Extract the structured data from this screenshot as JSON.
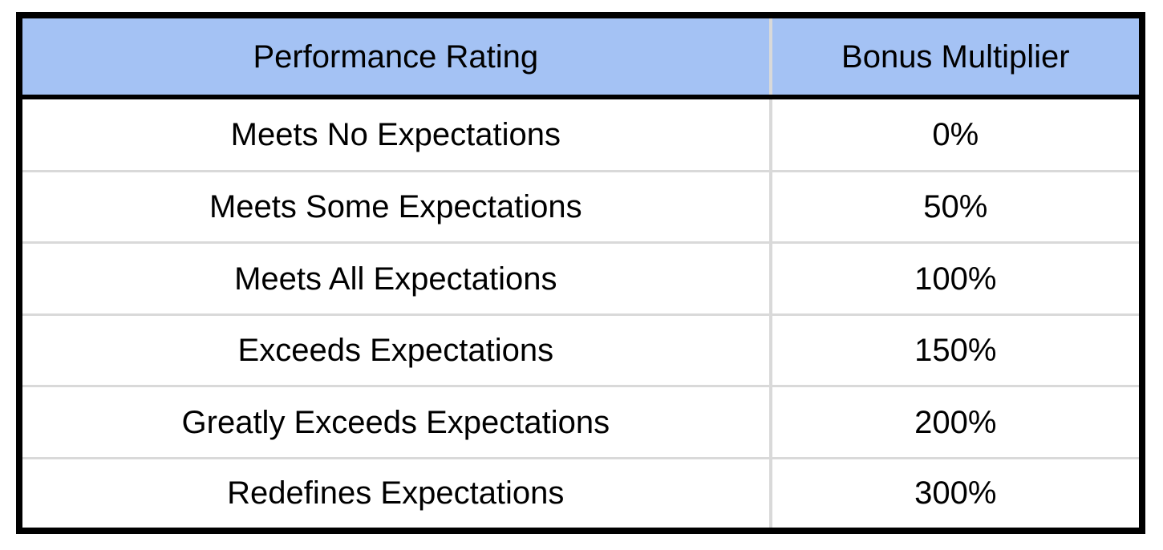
{
  "colors": {
    "header_bg": "#a4c2f4",
    "outer_border": "#000000",
    "divider": "#d9d9d9",
    "text": "#000000"
  },
  "table": {
    "columns": [
      {
        "label": "Performance Rating"
      },
      {
        "label": "Bonus Multiplier"
      }
    ],
    "rows": [
      {
        "rating": "Meets No Expectations",
        "multiplier": "0%"
      },
      {
        "rating": "Meets Some Expectations",
        "multiplier": "50%"
      },
      {
        "rating": "Meets All Expectations",
        "multiplier": "100%"
      },
      {
        "rating": "Exceeds Expectations",
        "multiplier": "150%"
      },
      {
        "rating": "Greatly Exceeds Expectations",
        "multiplier": "200%"
      },
      {
        "rating": "Redefines Expectations",
        "multiplier": "300%"
      }
    ]
  }
}
